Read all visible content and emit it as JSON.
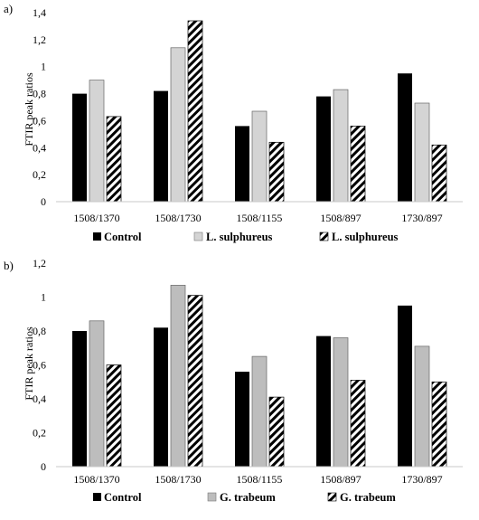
{
  "chart_data": [
    {
      "type": "bar",
      "panel_label": "a)",
      "ylabel": "FTIR peak ratios",
      "xlabel": "",
      "ylim": [
        0,
        1.4
      ],
      "yticks": [
        "0",
        "0,2",
        "0,4",
        "0,6",
        "0,8",
        "1",
        "1,2",
        "1,4"
      ],
      "categories": [
        "1508/1370",
        "1508/1730",
        "1508/1155",
        "1508/897",
        "1730/897"
      ],
      "series": [
        {
          "name": "Control",
          "fill": "solid",
          "color": "#000000",
          "values": [
            0.8,
            0.82,
            0.56,
            0.78,
            0.95
          ]
        },
        {
          "name": "L. sulphureus",
          "fill": "light-gray",
          "color": "#d4d4d4",
          "values": [
            0.9,
            1.14,
            0.67,
            0.83,
            0.73
          ]
        },
        {
          "name": "L. sulphureus",
          "fill": "diagonal-hatch",
          "color": "#000000",
          "values": [
            0.63,
            1.34,
            0.44,
            0.56,
            0.42
          ]
        }
      ],
      "legend_position": "bottom",
      "grid": false
    },
    {
      "type": "bar",
      "panel_label": "b)",
      "ylabel": "FTIR peak ratios",
      "xlabel": "",
      "ylim": [
        0,
        1.2
      ],
      "yticks": [
        "0",
        "0,2",
        "0,4",
        "0,6",
        "0,8",
        "1",
        "1,2"
      ],
      "categories": [
        "1508/1370",
        "1508/1730",
        "1508/1155",
        "1508/897",
        "1730/897"
      ],
      "series": [
        {
          "name": "Control",
          "fill": "solid",
          "color": "#000000",
          "values": [
            0.8,
            0.82,
            0.56,
            0.77,
            0.95
          ]
        },
        {
          "name": "G. trabeum",
          "fill": "medium-gray",
          "color": "#bdbdbd",
          "values": [
            0.86,
            1.07,
            0.65,
            0.76,
            0.71
          ]
        },
        {
          "name": "G. trabeum",
          "fill": "diagonal-hatch",
          "color": "#000000",
          "values": [
            0.6,
            1.01,
            0.41,
            0.51,
            0.5
          ]
        }
      ],
      "legend_position": "bottom",
      "grid": false
    }
  ]
}
